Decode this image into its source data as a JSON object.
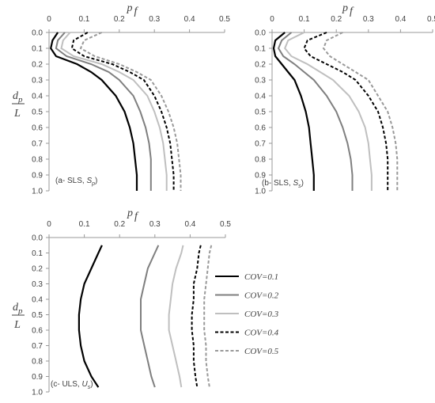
{
  "chart_data": [
    {
      "type": "line",
      "xlabel_main": "p",
      "xlabel_sub": "f",
      "ylabel_num": "d",
      "ylabel_num_sub": "p",
      "ylabel_den": "L",
      "annotation": "(a- SLS, ",
      "annotation_var": "S",
      "annotation_sub": "p",
      "annotation_end": ")",
      "xlim": [
        0,
        0.5
      ],
      "xticks": [
        0,
        0.1,
        0.2,
        0.3,
        0.4,
        0.5
      ],
      "ylim": [
        0,
        1
      ],
      "yticks": [
        {
          "value": 0,
          "label": "0.0"
        },
        0.1,
        0.2,
        0.3,
        0.4,
        0.5,
        0.6,
        0.7,
        0.8,
        0.9,
        {
          "value": 1,
          "label": "1.0"
        }
      ],
      "y": [
        0,
        0.05,
        0.1,
        0.15,
        0.2,
        0.25,
        0.3,
        0.4,
        0.5,
        0.6,
        0.7,
        0.8,
        0.9,
        1.0
      ],
      "series": [
        {
          "color": "#000000",
          "dashed": false,
          "values": [
            0.025,
            0.01,
            0.005,
            0.02,
            0.08,
            0.12,
            0.15,
            0.19,
            0.215,
            0.23,
            0.24,
            0.245,
            0.25,
            0.25
          ]
        },
        {
          "color": "#7f7f7f",
          "dashed": false,
          "values": [
            0.045,
            0.025,
            0.02,
            0.05,
            0.12,
            0.17,
            0.2,
            0.24,
            0.26,
            0.275,
            0.285,
            0.29,
            0.29,
            0.29
          ]
        },
        {
          "color": "#bfbfbf",
          "dashed": false,
          "values": [
            0.06,
            0.04,
            0.035,
            0.07,
            0.15,
            0.2,
            0.24,
            0.28,
            0.3,
            0.315,
            0.325,
            0.33,
            0.335,
            0.335
          ]
        },
        {
          "color": "#000000",
          "dashed": true,
          "values": [
            0.11,
            0.07,
            0.065,
            0.1,
            0.18,
            0.23,
            0.27,
            0.3,
            0.32,
            0.335,
            0.345,
            0.35,
            0.355,
            0.355
          ]
        },
        {
          "color": "#999999",
          "dashed": true,
          "values": [
            0.15,
            0.1,
            0.09,
            0.13,
            0.2,
            0.25,
            0.29,
            0.32,
            0.34,
            0.355,
            0.365,
            0.37,
            0.375,
            0.375
          ]
        }
      ]
    },
    {
      "type": "line",
      "xlabel_main": "p",
      "xlabel_sub": "f",
      "annotation": "(b- SLS, ",
      "annotation_var": "S",
      "annotation_sub": "s",
      "annotation_end": ")",
      "xlim": [
        0,
        0.5
      ],
      "xticks": [
        0,
        0.1,
        0.2,
        0.3,
        0.4,
        0.5
      ],
      "ylim": [
        0,
        1
      ],
      "yticks": [
        {
          "value": 0,
          "label": "0.0"
        },
        0.1,
        0.2,
        0.3,
        0.4,
        0.5,
        0.6,
        0.7,
        0.8,
        0.9,
        {
          "value": 1,
          "label": "1.0"
        }
      ],
      "y": [
        0,
        0.05,
        0.1,
        0.15,
        0.2,
        0.25,
        0.3,
        0.4,
        0.5,
        0.6,
        0.7,
        0.8,
        0.9,
        1.0
      ],
      "series": [
        {
          "color": "#000000",
          "dashed": false,
          "values": [
            0.04,
            0.01,
            0.005,
            0.01,
            0.03,
            0.05,
            0.07,
            0.09,
            0.105,
            0.115,
            0.12,
            0.125,
            0.13,
            0.13
          ]
        },
        {
          "color": "#7f7f7f",
          "dashed": false,
          "values": [
            0.06,
            0.03,
            0.02,
            0.035,
            0.07,
            0.1,
            0.13,
            0.17,
            0.2,
            0.22,
            0.235,
            0.245,
            0.25,
            0.25
          ]
        },
        {
          "color": "#bfbfbf",
          "dashed": false,
          "values": [
            0.1,
            0.05,
            0.04,
            0.06,
            0.11,
            0.15,
            0.19,
            0.24,
            0.27,
            0.29,
            0.3,
            0.305,
            0.31,
            0.31
          ]
        },
        {
          "color": "#000000",
          "dashed": true,
          "values": [
            0.17,
            0.11,
            0.1,
            0.12,
            0.17,
            0.22,
            0.26,
            0.3,
            0.33,
            0.345,
            0.355,
            0.36,
            0.36,
            0.36
          ]
        },
        {
          "color": "#999999",
          "dashed": true,
          "values": [
            0.22,
            0.17,
            0.16,
            0.18,
            0.22,
            0.26,
            0.3,
            0.33,
            0.36,
            0.375,
            0.385,
            0.39,
            0.39,
            0.39
          ]
        }
      ]
    },
    {
      "type": "line",
      "xlabel_main": "p",
      "xlabel_sub": "f",
      "ylabel_num": "d",
      "ylabel_num_sub": "p",
      "ylabel_den": "L",
      "annotation": "(c- ULS, ",
      "annotation_var": "U",
      "annotation_sub": "s",
      "annotation_end": ")",
      "xlim": [
        0,
        0.5
      ],
      "xticks": [
        0,
        0.1,
        0.2,
        0.3,
        0.4,
        0.5
      ],
      "ylim": [
        0,
        1
      ],
      "yticks": [
        {
          "value": 0,
          "label": "0.0"
        },
        0.1,
        0.2,
        0.3,
        0.4,
        0.5,
        0.6,
        0.7,
        0.8,
        0.9,
        {
          "value": 1,
          "label": "1.0"
        }
      ],
      "y": [
        0.05,
        0.1,
        0.2,
        0.3,
        0.4,
        0.5,
        0.6,
        0.7,
        0.8,
        0.9,
        0.97
      ],
      "series": [
        {
          "name": "COV=0.1",
          "color": "#000000",
          "dashed": false,
          "values": [
            0.15,
            0.14,
            0.12,
            0.1,
            0.09,
            0.085,
            0.085,
            0.09,
            0.1,
            0.12,
            0.14
          ]
        },
        {
          "name": "COV=0.2",
          "color": "#7f7f7f",
          "dashed": false,
          "values": [
            0.31,
            0.3,
            0.28,
            0.27,
            0.26,
            0.26,
            0.26,
            0.27,
            0.28,
            0.29,
            0.3
          ]
        },
        {
          "name": "COV=0.3",
          "color": "#bfbfbf",
          "dashed": false,
          "values": [
            0.38,
            0.375,
            0.36,
            0.35,
            0.345,
            0.34,
            0.34,
            0.35,
            0.36,
            0.37,
            0.375
          ]
        },
        {
          "name": "COV=0.4",
          "color": "#000000",
          "dashed": true,
          "values": [
            0.43,
            0.425,
            0.42,
            0.41,
            0.41,
            0.405,
            0.405,
            0.41,
            0.41,
            0.415,
            0.42
          ]
        },
        {
          "name": "COV=0.5",
          "color": "#999999",
          "dashed": true,
          "values": [
            0.46,
            0.455,
            0.45,
            0.445,
            0.44,
            0.44,
            0.44,
            0.445,
            0.445,
            0.45,
            0.455
          ]
        }
      ]
    }
  ]
}
